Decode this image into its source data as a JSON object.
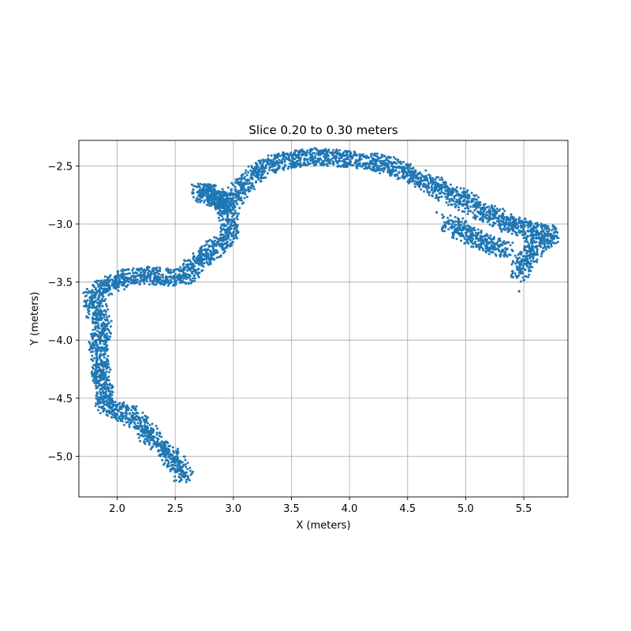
{
  "chart_data": {
    "type": "scatter",
    "title": "Slice 0.20 to 0.30 meters",
    "xlabel": "X (meters)",
    "ylabel": "Y (meters)",
    "xlim": [
      1.67,
      5.88
    ],
    "ylim": [
      -5.35,
      -2.28
    ],
    "x_ticks": [
      2.0,
      2.5,
      3.0,
      3.5,
      4.0,
      4.5,
      5.0,
      5.5
    ],
    "x_tick_labels": [
      "2.0",
      "2.5",
      "3.0",
      "3.5",
      "4.0",
      "4.5",
      "5.0",
      "5.5"
    ],
    "y_ticks": [
      -2.5,
      -3.0,
      -3.5,
      -4.0,
      -4.5,
      -5.0
    ],
    "y_tick_labels": [
      "−2.5",
      "−3.0",
      "−3.5",
      "−4.0",
      "−4.5",
      "−5.0"
    ],
    "grid": true,
    "marker_color": "#1f77b4",
    "series": [
      {
        "points": [
          [
            2.58,
            -5.18
          ],
          [
            2.55,
            -5.12
          ],
          [
            2.5,
            -5.05
          ],
          [
            2.45,
            -5.0
          ],
          [
            2.38,
            -4.92
          ],
          [
            2.3,
            -4.85
          ],
          [
            2.25,
            -4.78
          ],
          [
            2.2,
            -4.72
          ],
          [
            2.15,
            -4.67
          ],
          [
            2.08,
            -4.63
          ],
          [
            2.0,
            -4.6
          ],
          [
            1.93,
            -4.58
          ],
          [
            1.88,
            -4.52
          ],
          [
            1.9,
            -4.45
          ],
          [
            1.88,
            -4.38
          ],
          [
            1.85,
            -4.3
          ],
          [
            1.87,
            -4.22
          ],
          [
            1.85,
            -4.15
          ],
          [
            1.83,
            -4.08
          ],
          [
            1.85,
            -4.0
          ],
          [
            1.87,
            -3.92
          ],
          [
            1.88,
            -3.85
          ],
          [
            1.85,
            -3.78
          ],
          [
            1.8,
            -3.72
          ],
          [
            1.78,
            -3.65
          ],
          [
            1.83,
            -3.58
          ],
          [
            1.9,
            -3.53
          ],
          [
            1.98,
            -3.5
          ],
          [
            2.05,
            -3.47
          ],
          [
            2.13,
            -3.45
          ],
          [
            2.2,
            -3.44
          ],
          [
            2.28,
            -3.44
          ],
          [
            2.35,
            -3.45
          ],
          [
            2.43,
            -3.46
          ],
          [
            2.5,
            -3.46
          ],
          [
            2.58,
            -3.45
          ],
          [
            2.63,
            -3.4
          ],
          [
            2.68,
            -3.33
          ],
          [
            2.75,
            -3.27
          ],
          [
            2.83,
            -3.22
          ],
          [
            2.9,
            -3.17
          ],
          [
            2.95,
            -3.1
          ],
          [
            2.98,
            -3.0
          ],
          [
            2.95,
            -2.9
          ],
          [
            2.9,
            -2.82
          ],
          [
            2.85,
            -2.76
          ],
          [
            2.78,
            -2.73
          ],
          [
            2.7,
            -2.72
          ],
          [
            2.97,
            -2.82
          ],
          [
            3.02,
            -2.75
          ],
          [
            3.07,
            -2.68
          ],
          [
            3.13,
            -2.62
          ],
          [
            3.2,
            -2.56
          ],
          [
            3.28,
            -2.51
          ],
          [
            3.37,
            -2.47
          ],
          [
            3.48,
            -2.45
          ],
          [
            3.58,
            -2.43
          ],
          [
            3.68,
            -2.42
          ],
          [
            3.78,
            -2.42
          ],
          [
            3.88,
            -2.43
          ],
          [
            3.98,
            -2.44
          ],
          [
            4.08,
            -2.45
          ],
          [
            4.18,
            -2.46
          ],
          [
            4.28,
            -2.48
          ],
          [
            4.38,
            -2.51
          ],
          [
            4.48,
            -2.55
          ],
          [
            4.58,
            -2.6
          ],
          [
            4.68,
            -2.65
          ],
          [
            4.78,
            -2.7
          ],
          [
            4.88,
            -2.75
          ],
          [
            4.98,
            -2.8
          ],
          [
            5.08,
            -2.85
          ],
          [
            5.18,
            -2.9
          ],
          [
            5.28,
            -2.95
          ],
          [
            5.38,
            -3.0
          ],
          [
            5.48,
            -3.03
          ],
          [
            5.58,
            -3.06
          ],
          [
            5.68,
            -3.08
          ],
          [
            5.74,
            -3.1
          ],
          [
            5.68,
            -3.14
          ],
          [
            5.6,
            -3.2
          ],
          [
            5.52,
            -3.28
          ],
          [
            5.48,
            -3.35
          ],
          [
            5.45,
            -3.45
          ],
          [
            4.85,
            -2.98
          ],
          [
            4.95,
            -3.05
          ],
          [
            5.05,
            -3.1
          ],
          [
            5.15,
            -3.15
          ],
          [
            5.25,
            -3.2
          ],
          [
            5.35,
            -3.22
          ],
          [
            4.75,
            -2.9
          ],
          [
            5.46,
            -3.58
          ]
        ]
      }
    ]
  }
}
